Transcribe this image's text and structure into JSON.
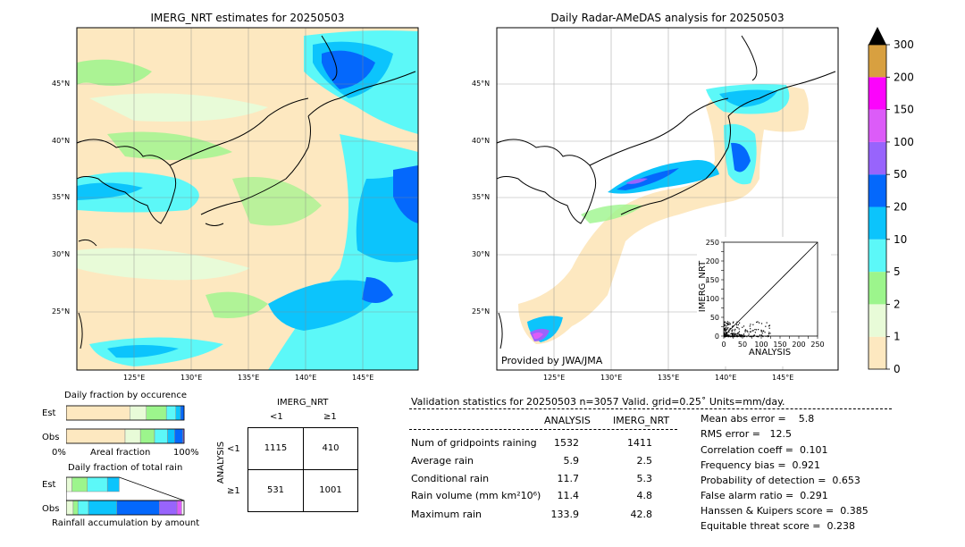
{
  "left_map": {
    "title": "IMERG_NRT estimates for 20250503",
    "lat_labels": [
      "45°N",
      "40°N",
      "35°N",
      "30°N",
      "25°N"
    ],
    "lon_labels": [
      "125°E",
      "130°E",
      "135°E",
      "140°E",
      "145°E"
    ]
  },
  "right_map": {
    "title": "Daily Radar-AMeDAS analysis for 20250503",
    "lat_labels": [
      "45°N",
      "40°N",
      "35°N",
      "30°N",
      "25°N"
    ],
    "lon_labels": [
      "125°E",
      "130°E",
      "135°E",
      "140°E",
      "145°E"
    ],
    "credit": "Provided by JWA/JMA"
  },
  "colorbar": {
    "ticks": [
      "0",
      "1",
      "2",
      "5",
      "10",
      "20",
      "50",
      "100",
      "150",
      "200",
      "300"
    ],
    "colors": [
      "#fde8c0",
      "#e8fbd8",
      "#9cf58c",
      "#5cf8f8",
      "#0cc4fc",
      "#0468fc",
      "#9864fc",
      "#dc5cf8",
      "#fc04fc",
      "#d8a040"
    ],
    "over_color": "#000000"
  },
  "chart_data": [
    {
      "type": "scatter",
      "title": "",
      "xlabel": "ANALYSIS",
      "ylabel": "IMERG_NRT",
      "xlim": [
        0,
        250
      ],
      "ylim": [
        0,
        250
      ],
      "x_ticks": [
        "0",
        "25",
        "50",
        "75",
        "100",
        "125",
        "150",
        "175",
        "200",
        "225",
        "250"
      ],
      "y_ticks": [
        "0",
        "25",
        "50",
        "75",
        "100",
        "125",
        "150",
        "175",
        "200",
        "225",
        "250"
      ],
      "tick_labels_x": [
        "0",
        "50",
        "100",
        "150",
        "200",
        "250"
      ],
      "tick_labels_y": [
        "0",
        "50",
        "100",
        "150",
        "200",
        "250"
      ],
      "reference_line": "y = x"
    },
    {
      "type": "bar",
      "title": "Daily fraction by occurence",
      "orientation": "horizontal-stacked",
      "categories": [
        "Est",
        "Obs"
      ],
      "xlabel": "Areal fraction",
      "x_ticks": [
        "0%",
        "100%"
      ],
      "series": [
        {
          "color": "#fde8c0",
          "values": [
            0.54,
            0.5
          ]
        },
        {
          "color": "#e8fbd8",
          "values": [
            0.14,
            0.13
          ]
        },
        {
          "color": "#9cf58c",
          "values": [
            0.17,
            0.12
          ]
        },
        {
          "color": "#5cf8f8",
          "values": [
            0.08,
            0.11
          ]
        },
        {
          "color": "#0cc4fc",
          "values": [
            0.04,
            0.06
          ]
        },
        {
          "color": "#0468fc",
          "values": [
            0.03,
            0.07
          ]
        },
        {
          "color": "#9864fc",
          "values": [
            0.0,
            0.01
          ]
        }
      ]
    },
    {
      "type": "bar",
      "title": "Daily fraction of total rain",
      "orientation": "horizontal-stacked",
      "categories": [
        "Est",
        "Obs"
      ],
      "xlabel": "Rainfall accumulation by amount",
      "series": [
        {
          "color": "#e8fbd8",
          "values": [
            0.05,
            0.06
          ]
        },
        {
          "color": "#9cf58c",
          "values": [
            0.13,
            0.04
          ]
        },
        {
          "color": "#5cf8f8",
          "values": [
            0.17,
            0.09
          ]
        },
        {
          "color": "#0cc4fc",
          "values": [
            0.1,
            0.24
          ]
        },
        {
          "color": "#0468fc",
          "values": [
            0.0,
            0.36
          ]
        },
        {
          "color": "#9864fc",
          "values": [
            0.0,
            0.15
          ]
        },
        {
          "color": "#dc5cf8",
          "values": [
            0.0,
            0.04
          ]
        }
      ]
    }
  ],
  "contingency": {
    "col_title": "IMERG_NRT",
    "row_title": "ANALYSIS",
    "col_labels": [
      "<1",
      "≥1"
    ],
    "row_labels": [
      "<1",
      "≥1"
    ],
    "cells": [
      [
        "1115",
        "410"
      ],
      [
        "531",
        "1001"
      ]
    ]
  },
  "validation": {
    "header": "Validation statistics for 20250503  n=3057 Valid. grid=0.25˚ Units=mm/day.",
    "col_analysis": "ANALYSIS",
    "col_imerg": "IMERG_NRT",
    "rows": [
      {
        "label": "Num of gridpoints raining",
        "analysis": "1532",
        "imerg": "1411"
      },
      {
        "label": "Average rain",
        "analysis": "5.9",
        "imerg": "2.5"
      },
      {
        "label": "Conditional rain",
        "analysis": "11.7",
        "imerg": "5.3"
      },
      {
        "label": "Rain volume (mm km²10⁶)",
        "analysis": "11.4",
        "imerg": "4.8"
      },
      {
        "label": "Maximum rain",
        "analysis": "133.9",
        "imerg": "42.8"
      }
    ],
    "scores": [
      "Mean abs error =    5.8",
      "RMS error =   12.5",
      "Correlation coeff =  0.101",
      "Frequency bias =  0.921",
      "Probability of detection =  0.653",
      "False alarm ratio =  0.291",
      "Hanssen & Kuipers score =  0.385",
      "Equitable threat score =  0.238"
    ]
  }
}
